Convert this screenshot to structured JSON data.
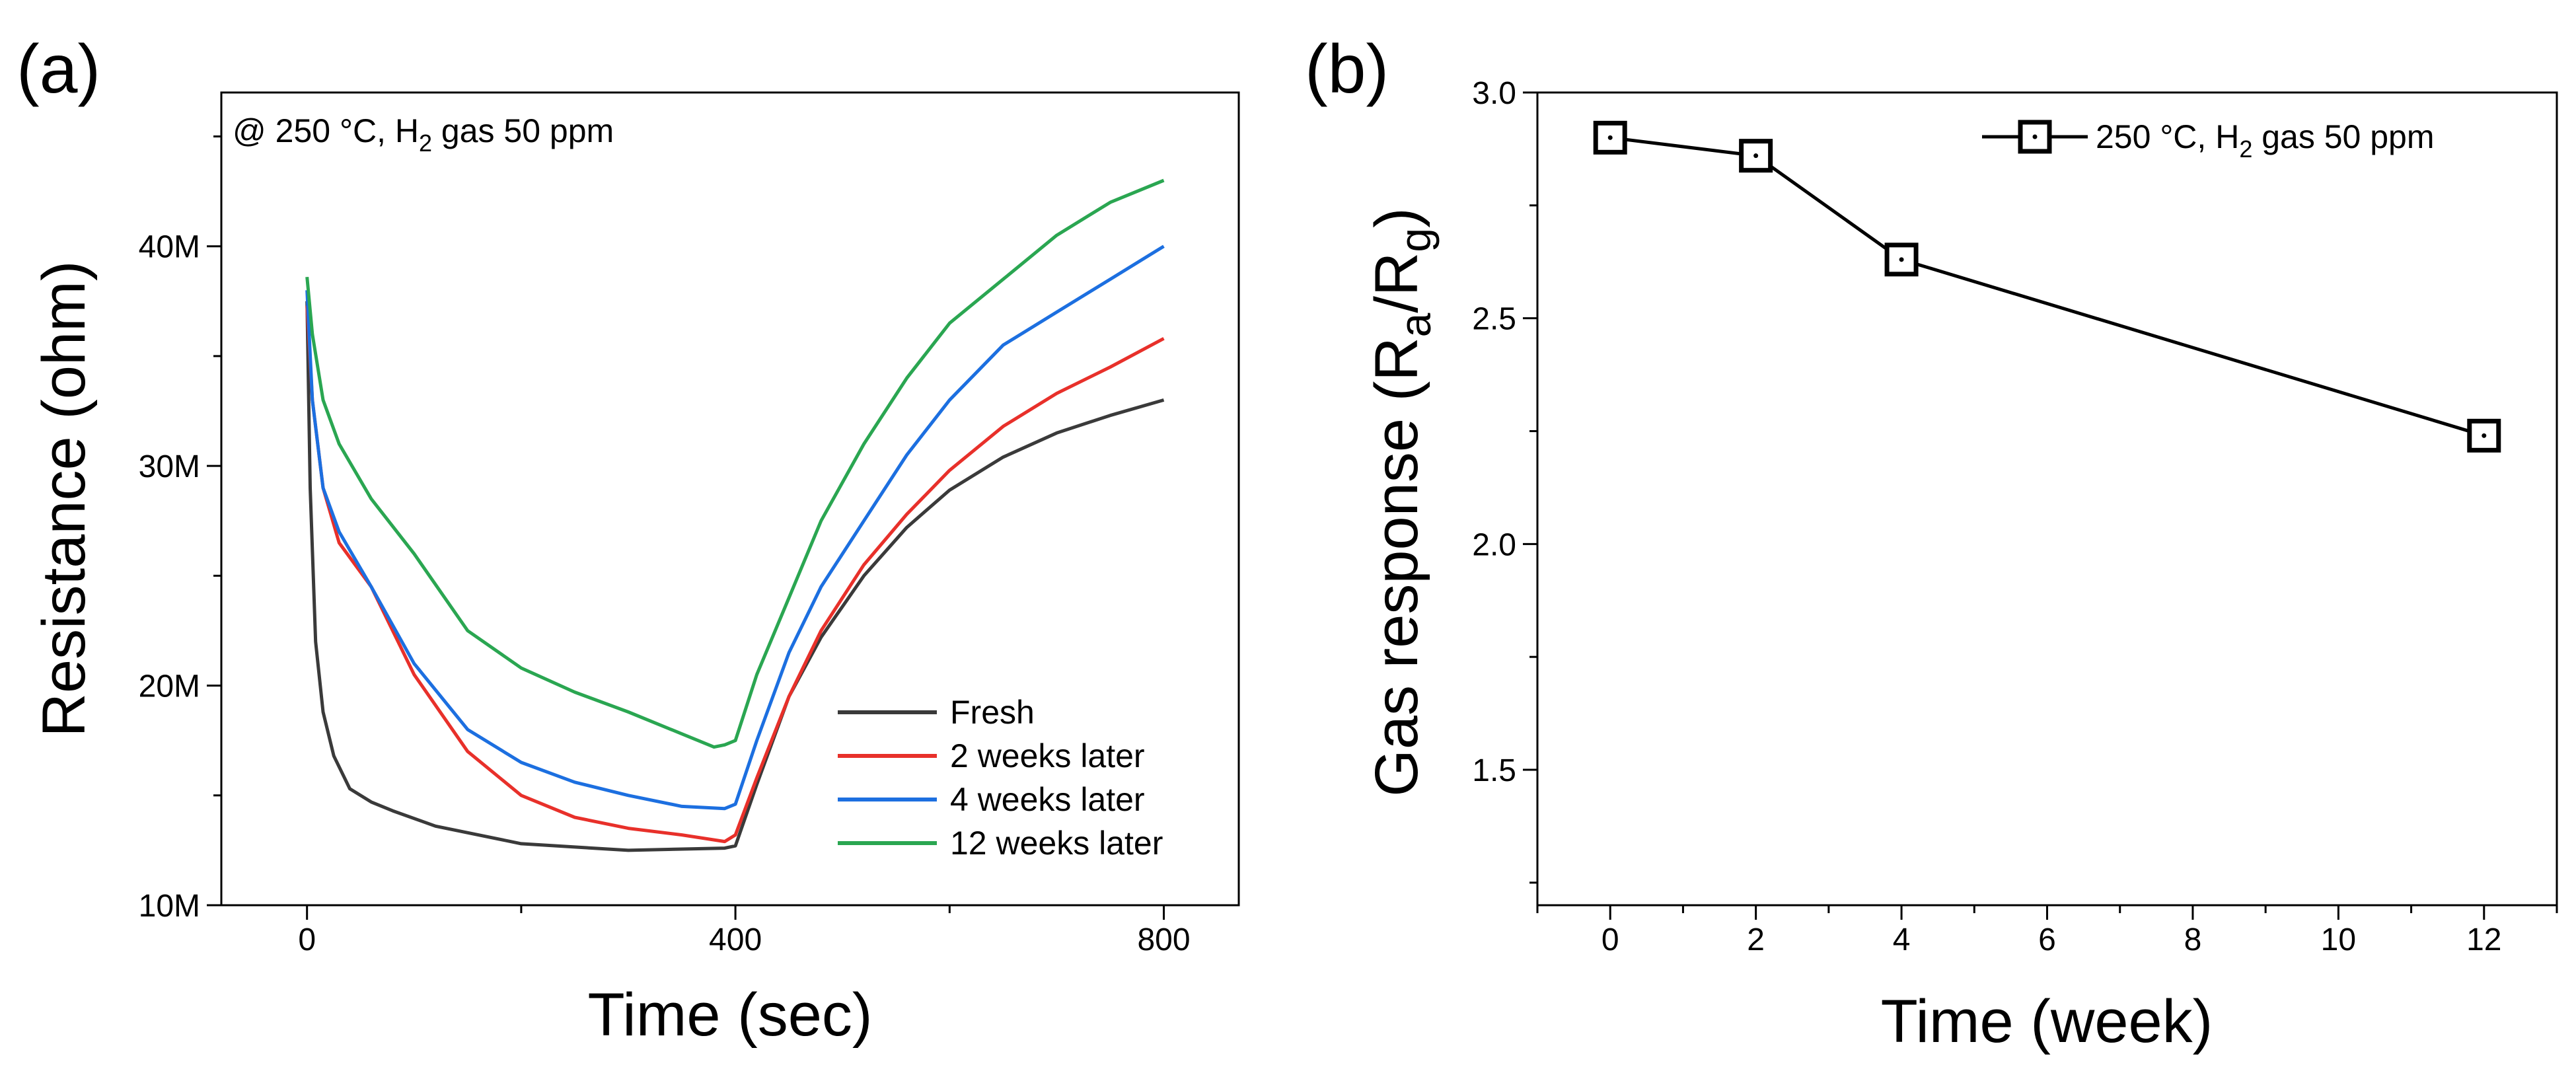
{
  "chart_data": [
    {
      "panel_label": "(a)",
      "type": "line",
      "title": "",
      "xlabel": "Time (sec)",
      "ylabel": "Resistance (ohm)",
      "xlim": [
        -80,
        870
      ],
      "ylim": [
        10000000,
        47000000
      ],
      "xticks": [
        0,
        400,
        800
      ],
      "xtick_labels": [
        "0",
        "400",
        "800"
      ],
      "yticks": [
        10000000,
        20000000,
        30000000,
        40000000
      ],
      "ytick_labels": [
        "10M",
        "20M",
        "30M",
        "40M"
      ],
      "annotation": {
        "prefix": "@ 250 °C, H",
        "subscript": "2",
        "suffix": " gas 50 ppm"
      },
      "legend_position": "lower-right",
      "series": [
        {
          "name": "Fresh",
          "color": "#3a3a3a",
          "x": [
            0,
            3,
            8,
            15,
            25,
            40,
            60,
            80,
            120,
            200,
            300,
            390,
            400,
            420,
            450,
            480,
            520,
            560,
            600,
            650,
            700,
            750,
            800
          ],
          "y": [
            37.5,
            29,
            22,
            18.8,
            16.8,
            15.3,
            14.7,
            14.3,
            13.6,
            12.8,
            12.5,
            12.6,
            12.7,
            15.5,
            19.5,
            22.2,
            25,
            27.2,
            28.9,
            30.4,
            31.5,
            32.3,
            33.0
          ]
        },
        {
          "name": "2 weeks later",
          "color": "#e8302a",
          "x": [
            0,
            5,
            15,
            30,
            60,
            100,
            150,
            200,
            250,
            300,
            350,
            390,
            400,
            420,
            450,
            480,
            520,
            560,
            600,
            650,
            700,
            750,
            800
          ],
          "y": [
            37.3,
            33,
            29,
            26.5,
            24.5,
            20.5,
            17,
            15,
            14,
            13.5,
            13.2,
            12.9,
            13.2,
            15.8,
            19.5,
            22.5,
            25.5,
            27.8,
            29.8,
            31.8,
            33.3,
            34.5,
            35.8
          ]
        },
        {
          "name": "4 weeks later",
          "color": "#1c6fe0",
          "x": [
            0,
            5,
            15,
            30,
            60,
            100,
            150,
            200,
            250,
            300,
            350,
            390,
            400,
            420,
            450,
            480,
            520,
            560,
            600,
            650,
            700,
            750,
            800
          ],
          "y": [
            38.0,
            33,
            29,
            27,
            24.5,
            21,
            18,
            16.5,
            15.6,
            15,
            14.5,
            14.4,
            14.6,
            17.5,
            21.5,
            24.5,
            27.5,
            30.5,
            33,
            35.5,
            37,
            38.5,
            40.0
          ]
        },
        {
          "name": "12 weeks later",
          "color": "#2aa651",
          "x": [
            0,
            5,
            15,
            30,
            60,
            100,
            150,
            200,
            250,
            300,
            350,
            380,
            390,
            400,
            420,
            450,
            480,
            520,
            560,
            600,
            650,
            700,
            750,
            800
          ],
          "y": [
            38.6,
            36,
            33,
            31,
            28.5,
            26,
            22.5,
            20.8,
            19.7,
            18.8,
            17.8,
            17.2,
            17.3,
            17.5,
            20.5,
            24,
            27.5,
            31,
            34,
            36.5,
            38.5,
            40.5,
            42,
            43.0
          ]
        }
      ]
    },
    {
      "panel_label": "(b)",
      "type": "line",
      "title": "",
      "xlabel": "Time (week)",
      "ylabel_prefix": "Gas response (R",
      "ylabel_sub1": "a",
      "ylabel_mid": "/R",
      "ylabel_sub2": "g",
      "ylabel_suffix": ")",
      "xlim": [
        -1,
        13
      ],
      "ylim": [
        1.2,
        3.0
      ],
      "xticks": [
        0,
        2,
        4,
        6,
        8,
        10,
        12
      ],
      "xtick_labels": [
        "0",
        "2",
        "4",
        "6",
        "8",
        "10",
        "12"
      ],
      "yticks": [
        1.5,
        2.0,
        2.5,
        3.0
      ],
      "ytick_labels": [
        "1.5",
        "2.0",
        "2.5",
        "3.0"
      ],
      "legend_position": "top-right",
      "series": [
        {
          "name_prefix": "250 °C, H",
          "name_sub": "2",
          "name_suffix": " gas 50 ppm",
          "color": "#000000",
          "marker": "square-dot",
          "x": [
            0,
            2,
            4,
            12
          ],
          "y": [
            2.9,
            2.86,
            2.63,
            2.24
          ]
        }
      ]
    }
  ]
}
